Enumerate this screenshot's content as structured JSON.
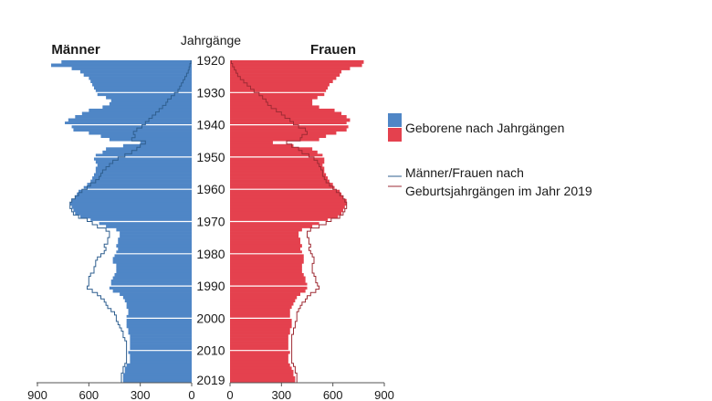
{
  "chart_data": {
    "type": "bar",
    "orientation": "horizontal-population-pyramid",
    "left_title": "Männer",
    "center_title": "Jahrgänge",
    "right_title": "Frauen",
    "year_ticks": [
      "1920",
      "1930",
      "1940",
      "1950",
      "1960",
      "1970",
      "1980",
      "1990",
      "2000",
      "2010",
      "2019"
    ],
    "x_ticks_left": [
      "900",
      "600",
      "300",
      "0"
    ],
    "x_ticks_right": [
      "0",
      "300",
      "600",
      "900"
    ],
    "xlim": [
      0,
      900
    ],
    "legend": {
      "bars_label": "Geborene nach Jahrgängen",
      "line_label_1": "Männer/Frauen nach",
      "line_label_2": "Geburtsjahrgängen im Jahr 2019"
    },
    "colors": {
      "men": "#4f86c6",
      "women": "#e4414e",
      "men_line": "#2f5f8f",
      "women_line": "#9e2b34"
    },
    "years": [
      1920,
      1921,
      1922,
      1923,
      1924,
      1925,
      1926,
      1927,
      1928,
      1929,
      1930,
      1931,
      1932,
      1933,
      1934,
      1935,
      1936,
      1937,
      1938,
      1939,
      1940,
      1941,
      1942,
      1943,
      1944,
      1945,
      1946,
      1947,
      1948,
      1949,
      1950,
      1951,
      1952,
      1953,
      1954,
      1955,
      1956,
      1957,
      1958,
      1959,
      1960,
      1961,
      1962,
      1963,
      1964,
      1965,
      1966,
      1967,
      1968,
      1969,
      1970,
      1971,
      1972,
      1973,
      1974,
      1975,
      1976,
      1977,
      1978,
      1979,
      1980,
      1981,
      1982,
      1983,
      1984,
      1985,
      1986,
      1987,
      1988,
      1989,
      1990,
      1991,
      1992,
      1993,
      1994,
      1995,
      1996,
      1997,
      1998,
      1999,
      2000,
      2001,
      2002,
      2003,
      2004,
      2005,
      2006,
      2007,
      2008,
      2009,
      2010,
      2011,
      2012,
      2013,
      2014,
      2015,
      2016,
      2017,
      2018,
      2019
    ],
    "series": [
      {
        "name": "Männer",
        "values": [
          760,
          820,
          700,
          650,
          630,
          600,
          590,
          580,
          570,
          560,
          550,
          500,
          470,
          480,
          520,
          600,
          640,
          680,
          720,
          740,
          700,
          690,
          600,
          530,
          480,
          300,
          400,
          500,
          520,
          560,
          570,
          560,
          550,
          560,
          560,
          570,
          580,
          590,
          610,
          630,
          660,
          670,
          680,
          700,
          710,
          700,
          690,
          680,
          650,
          590,
          540,
          500,
          440,
          420,
          420,
          430,
          430,
          440,
          430,
          440,
          450,
          460,
          460,
          440,
          440,
          440,
          450,
          460,
          470,
          470,
          480,
          460,
          420,
          400,
          390,
          380,
          380,
          370,
          370,
          380,
          380,
          380,
          380,
          370,
          370,
          360,
          360,
          360,
          360,
          360,
          370,
          360,
          360,
          360,
          380,
          390,
          390,
          400,
          400,
          400
        ]
      },
      {
        "name": "Frauen",
        "values": [
          780,
          770,
          700,
          650,
          640,
          620,
          600,
          580,
          570,
          560,
          550,
          510,
          480,
          480,
          520,
          610,
          650,
          680,
          700,
          680,
          690,
          680,
          620,
          560,
          520,
          250,
          370,
          480,
          510,
          540,
          550,
          550,
          540,
          550,
          550,
          560,
          570,
          580,
          600,
          610,
          640,
          650,
          660,
          680,
          680,
          670,
          660,
          650,
          630,
          570,
          520,
          480,
          420,
          400,
          400,
          410,
          410,
          420,
          410,
          420,
          430,
          430,
          430,
          420,
          420,
          420,
          430,
          440,
          440,
          450,
          450,
          440,
          410,
          390,
          380,
          370,
          360,
          350,
          350,
          350,
          360,
          360,
          360,
          350,
          350,
          340,
          340,
          340,
          340,
          340,
          350,
          340,
          340,
          340,
          350,
          360,
          370,
          370,
          380,
          380
        ]
      },
      {
        "name": "Männer 2019",
        "values": [
          5,
          10,
          15,
          20,
          30,
          40,
          50,
          60,
          70,
          80,
          100,
          120,
          140,
          150,
          170,
          190,
          210,
          230,
          250,
          270,
          290,
          320,
          340,
          330,
          350,
          270,
          300,
          320,
          350,
          390,
          430,
          460,
          480,
          500,
          520,
          530,
          540,
          560,
          590,
          610,
          640,
          660,
          680,
          700,
          710,
          710,
          700,
          690,
          660,
          610,
          580,
          550,
          500,
          480,
          480,
          490,
          490,
          510,
          500,
          510,
          530,
          550,
          560,
          560,
          570,
          570,
          590,
          600,
          600,
          600,
          610,
          580,
          550,
          530,
          510,
          500,
          490,
          470,
          450,
          440,
          440,
          430,
          420,
          410,
          400,
          400,
          390,
          380,
          380,
          380,
          380,
          380,
          380,
          380,
          390,
          400,
          400,
          410,
          410,
          410
        ]
      },
      {
        "name": "Frauen 2019",
        "values": [
          8,
          15,
          25,
          35,
          45,
          60,
          80,
          100,
          120,
          140,
          170,
          190,
          210,
          220,
          240,
          270,
          300,
          320,
          350,
          370,
          400,
          440,
          450,
          420,
          410,
          330,
          360,
          400,
          420,
          460,
          490,
          510,
          520,
          530,
          540,
          540,
          550,
          560,
          580,
          600,
          620,
          640,
          660,
          670,
          680,
          680,
          670,
          660,
          640,
          590,
          560,
          520,
          470,
          450,
          450,
          460,
          460,
          470,
          460,
          470,
          480,
          490,
          490,
          480,
          480,
          480,
          490,
          500,
          500,
          510,
          520,
          500,
          470,
          450,
          440,
          420,
          410,
          400,
          390,
          390,
          390,
          380,
          380,
          370,
          370,
          360,
          360,
          360,
          360,
          360,
          360,
          360,
          360,
          360,
          370,
          380,
          380,
          390,
          390,
          390
        ]
      }
    ]
  }
}
